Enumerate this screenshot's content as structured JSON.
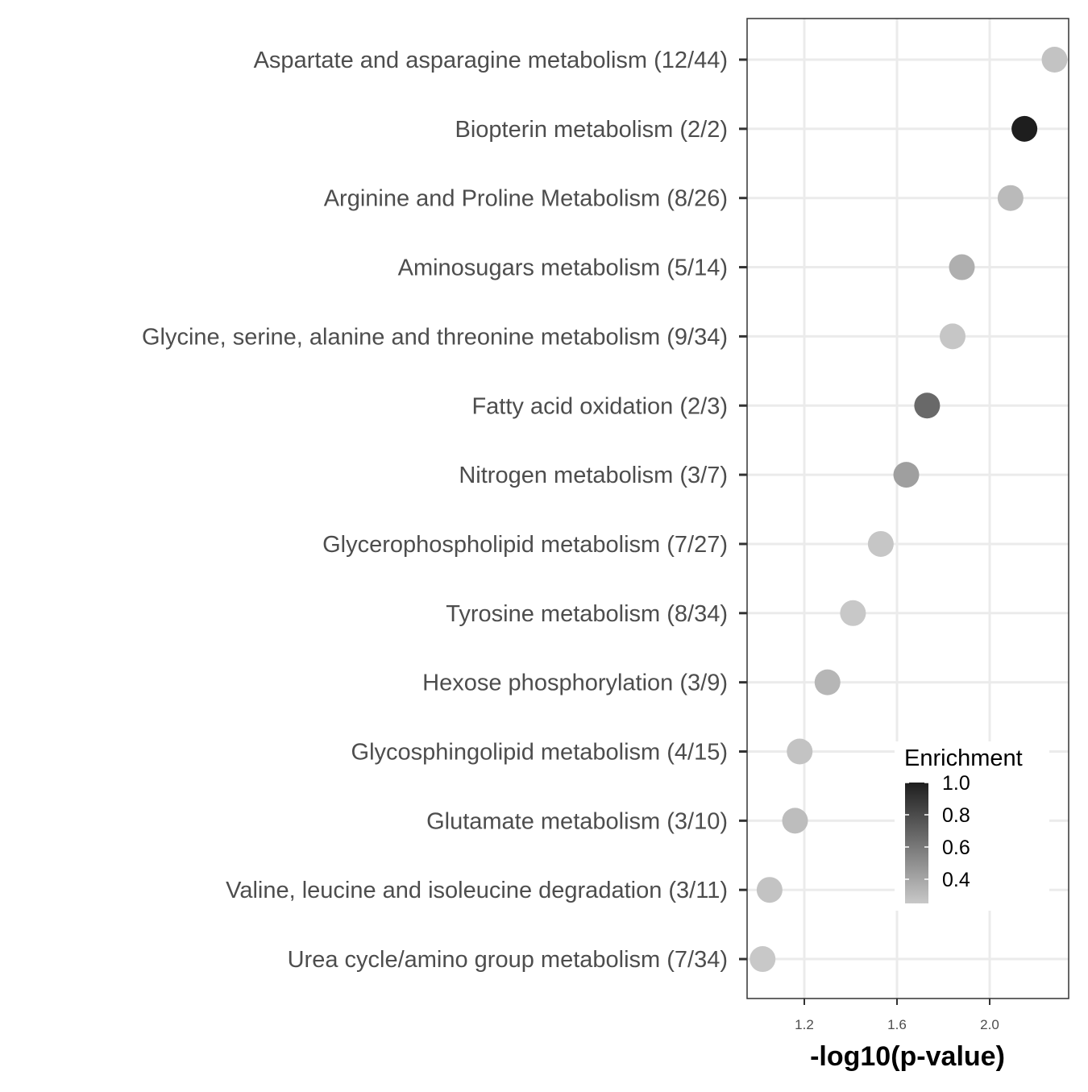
{
  "chart_data": {
    "type": "scatter",
    "xlabel": "-log10(p-value)",
    "ylabel": "",
    "xlim": [
      0.95,
      2.35
    ],
    "x_ticks": [
      "1.2",
      "1.6",
      "2.0"
    ],
    "x_tick_values": [
      1.2,
      1.6,
      2.0
    ],
    "grid": true,
    "legend": {
      "title": "Enrichment",
      "position": "bottom-right inside",
      "scale": "grayscale continuous",
      "range": [
        0.25,
        1.0
      ],
      "labels": [
        "1.0",
        "0.8",
        "0.6",
        "0.4"
      ],
      "label_values": [
        1.0,
        0.8,
        0.6,
        0.4
      ],
      "color_low": "#c8c8c8",
      "color_high": "#1e1e1e"
    },
    "points": [
      {
        "label": "Aspartate and asparagine metabolism (12/44)",
        "x": 2.28,
        "enrichment": 0.27
      },
      {
        "label": "Biopterin metabolism (2/2)",
        "x": 2.15,
        "enrichment": 1.0
      },
      {
        "label": "Arginine and Proline Metabolism (8/26)",
        "x": 2.09,
        "enrichment": 0.31
      },
      {
        "label": "Aminosugars metabolism (5/14)",
        "x": 1.88,
        "enrichment": 0.36
      },
      {
        "label": "Glycine, serine, alanine and threonine metabolism (9/34)",
        "x": 1.84,
        "enrichment": 0.26
      },
      {
        "label": "Fatty acid oxidation (2/3)",
        "x": 1.73,
        "enrichment": 0.67
      },
      {
        "label": "Nitrogen metabolism (3/7)",
        "x": 1.64,
        "enrichment": 0.43
      },
      {
        "label": "Glycerophospholipid metabolism (7/27)",
        "x": 1.53,
        "enrichment": 0.26
      },
      {
        "label": "Tyrosine metabolism (8/34)",
        "x": 1.41,
        "enrichment": 0.24
      },
      {
        "label": "Hexose phosphorylation (3/9)",
        "x": 1.3,
        "enrichment": 0.33
      },
      {
        "label": "Glycosphingolipid metabolism (4/15)",
        "x": 1.18,
        "enrichment": 0.27
      },
      {
        "label": "Glutamate metabolism (3/10)",
        "x": 1.16,
        "enrichment": 0.3
      },
      {
        "label": "Valine, leucine and isoleucine degradation (3/11)",
        "x": 1.05,
        "enrichment": 0.27
      },
      {
        "label": "Urea cycle/amino group metabolism (7/34)",
        "x": 1.02,
        "enrichment": 0.21
      }
    ]
  }
}
